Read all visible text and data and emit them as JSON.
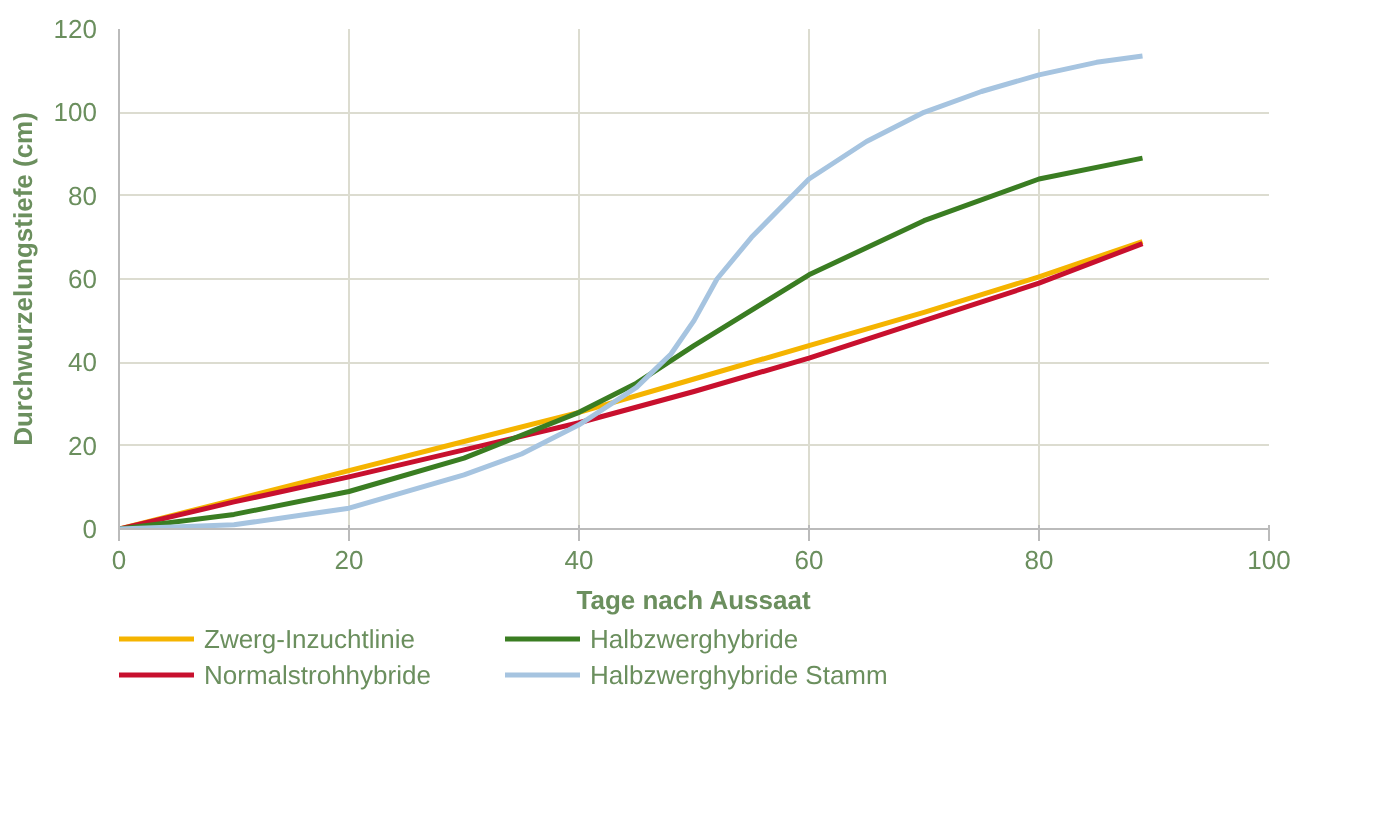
{
  "chart_data": {
    "type": "line",
    "xlabel": "Tage nach Aussaat",
    "ylabel": "Durchwurzelungstiefe (cm)",
    "xlim": [
      0,
      100
    ],
    "ylim": [
      0,
      120
    ],
    "xticks": [
      0,
      20,
      40,
      60,
      80,
      100
    ],
    "yticks": [
      0,
      20,
      40,
      60,
      80,
      100,
      120
    ],
    "grid": true,
    "legend": "bottom",
    "marker": "none",
    "line_style": "solid",
    "series": [
      {
        "name": "Zwerg-Inzuchtlinie",
        "color": "#f5b400",
        "x": [
          0,
          10,
          20,
          30,
          40,
          50,
          60,
          70,
          80,
          89
        ],
        "values": [
          0,
          7,
          14,
          21,
          28,
          36,
          44,
          52,
          60.5,
          69
        ]
      },
      {
        "name": "Normalstrohhybride",
        "color": "#c8102e",
        "x": [
          0,
          10,
          20,
          30,
          40,
          50,
          60,
          70,
          80,
          89
        ],
        "values": [
          0,
          6.5,
          12.5,
          19,
          25.5,
          33,
          41,
          50,
          59,
          68.5
        ]
      },
      {
        "name": "Halbzwerghybride",
        "color": "#3a7d22",
        "x": [
          0,
          10,
          20,
          30,
          40,
          45,
          50,
          60,
          70,
          80,
          89
        ],
        "values": [
          0,
          3.5,
          9,
          17,
          28,
          35,
          44,
          61,
          74,
          84,
          89
        ]
      },
      {
        "name": "Halbzwerghybride Stamm",
        "color": "#a6c4e0",
        "x": [
          0,
          10,
          20,
          30,
          35,
          40,
          45,
          48,
          50,
          52,
          55,
          60,
          65,
          70,
          75,
          80,
          85,
          89
        ],
        "values": [
          0,
          1,
          5,
          13,
          18,
          25,
          34,
          42,
          50,
          60,
          70,
          84,
          93,
          100,
          105,
          109,
          112,
          113.5
        ]
      }
    ]
  }
}
